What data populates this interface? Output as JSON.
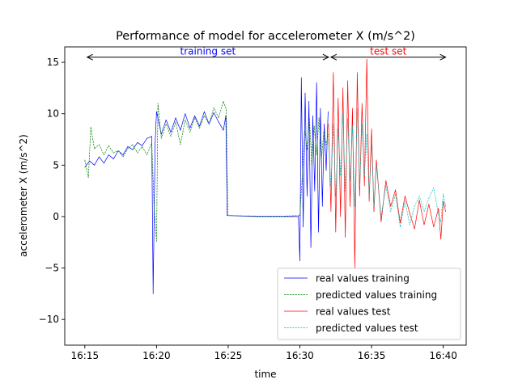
{
  "chart_data": {
    "type": "line",
    "title": "Performance of model for accelerometer X (m/s^2)",
    "xlabel": "time",
    "ylabel": "accelerometer X (m/s^2)",
    "xlim": [
      "16:13:36",
      "16:41:36"
    ],
    "ylim": [
      -12.5,
      16.5
    ],
    "xticks": [
      "16:15",
      "16:20",
      "16:25",
      "16:30",
      "16:35",
      "16:40"
    ],
    "yticks": [
      -10,
      -5,
      0,
      5,
      10,
      15
    ],
    "grid": false,
    "legend_position": "lower-right",
    "annotations": [
      {
        "text": "training set",
        "color": "#0000ff",
        "arrow_from": "16:15:10",
        "arrow_to": "16:32:00",
        "y": 15.5
      },
      {
        "text": "test set",
        "color": "#ff0000",
        "arrow_from": "16:32:10",
        "arrow_to": "16:40:10",
        "y": 15.5
      }
    ],
    "series": [
      {
        "name": "real values training",
        "color": "#0000ff",
        "style": "solid",
        "points": [
          [
            "16:15:00",
            4.8
          ],
          [
            "16:15:20",
            5.4
          ],
          [
            "16:15:40",
            5.0
          ],
          [
            "16:16:00",
            5.8
          ],
          [
            "16:16:20",
            5.2
          ],
          [
            "16:16:40",
            6.0
          ],
          [
            "16:17:00",
            5.6
          ],
          [
            "16:17:20",
            6.4
          ],
          [
            "16:17:40",
            6.0
          ],
          [
            "16:18:00",
            6.8
          ],
          [
            "16:18:20",
            6.5
          ],
          [
            "16:18:40",
            7.2
          ],
          [
            "16:19:00",
            6.9
          ],
          [
            "16:19:20",
            7.6
          ],
          [
            "16:19:40",
            7.8
          ],
          [
            "16:19:46",
            -7.5
          ],
          [
            "16:19:54",
            7.0
          ],
          [
            "16:20:00",
            10.2
          ],
          [
            "16:20:20",
            8.0
          ],
          [
            "16:20:40",
            9.4
          ],
          [
            "16:21:00",
            8.2
          ],
          [
            "16:21:20",
            9.6
          ],
          [
            "16:21:40",
            8.4
          ],
          [
            "16:22:00",
            10.0
          ],
          [
            "16:22:20",
            8.6
          ],
          [
            "16:22:40",
            9.8
          ],
          [
            "16:23:00",
            8.8
          ],
          [
            "16:23:20",
            10.2
          ],
          [
            "16:23:40",
            9.0
          ],
          [
            "16:24:00",
            10.1
          ],
          [
            "16:24:20",
            9.2
          ],
          [
            "16:24:40",
            8.4
          ],
          [
            "16:24:50",
            9.8
          ],
          [
            "16:24:56",
            0.1
          ],
          [
            "16:27:00",
            0.0
          ],
          [
            "16:29:00",
            0.0
          ],
          [
            "16:29:54",
            0.0
          ],
          [
            "16:30:00",
            -4.3
          ],
          [
            "16:30:06",
            13.5
          ],
          [
            "16:30:14",
            -1.0
          ],
          [
            "16:30:22",
            12.0
          ],
          [
            "16:30:30",
            2.0
          ],
          [
            "16:30:38",
            11.2
          ],
          [
            "16:30:46",
            -3.0
          ],
          [
            "16:30:54",
            9.8
          ],
          [
            "16:31:02",
            2.5
          ],
          [
            "16:31:10",
            13.0
          ],
          [
            "16:31:18",
            -1.5
          ],
          [
            "16:31:26",
            10.5
          ],
          [
            "16:31:34",
            1.0
          ],
          [
            "16:31:42",
            9.0
          ],
          [
            "16:31:50",
            4.5
          ],
          [
            "16:31:58",
            10.2
          ]
        ]
      },
      {
        "name": "predicted values training",
        "color": "#008000",
        "style": "dashed",
        "points": [
          [
            "16:15:00",
            5.5
          ],
          [
            "16:15:15",
            3.8
          ],
          [
            "16:15:25",
            8.7
          ],
          [
            "16:15:40",
            6.6
          ],
          [
            "16:16:00",
            7.0
          ],
          [
            "16:16:20",
            6.0
          ],
          [
            "16:16:40",
            6.9
          ],
          [
            "16:17:00",
            6.2
          ],
          [
            "16:17:20",
            6.4
          ],
          [
            "16:17:40",
            5.8
          ],
          [
            "16:18:00",
            6.6
          ],
          [
            "16:18:20",
            7.0
          ],
          [
            "16:18:40",
            6.2
          ],
          [
            "16:19:00",
            6.8
          ],
          [
            "16:19:20",
            6.0
          ],
          [
            "16:19:40",
            7.2
          ],
          [
            "16:19:50",
            1.0
          ],
          [
            "16:20:00",
            -2.4
          ],
          [
            "16:20:06",
            11.0
          ],
          [
            "16:20:20",
            7.6
          ],
          [
            "16:20:40",
            9.0
          ],
          [
            "16:21:00",
            7.8
          ],
          [
            "16:21:20",
            9.2
          ],
          [
            "16:21:40",
            7.0
          ],
          [
            "16:22:00",
            9.4
          ],
          [
            "16:22:20",
            8.2
          ],
          [
            "16:22:40",
            9.6
          ],
          [
            "16:23:00",
            8.6
          ],
          [
            "16:23:20",
            9.8
          ],
          [
            "16:23:40",
            9.0
          ],
          [
            "16:24:00",
            10.6
          ],
          [
            "16:24:20",
            9.6
          ],
          [
            "16:24:40",
            11.2
          ],
          [
            "16:24:52",
            10.4
          ],
          [
            "16:24:58",
            0.1
          ],
          [
            "16:27:00",
            0.05
          ],
          [
            "16:29:00",
            0.05
          ],
          [
            "16:30:00",
            0.1
          ],
          [
            "16:30:10",
            4.0
          ],
          [
            "16:30:20",
            8.5
          ],
          [
            "16:30:30",
            6.5
          ],
          [
            "16:30:40",
            9.5
          ],
          [
            "16:30:50",
            5.0
          ],
          [
            "16:31:00",
            8.8
          ],
          [
            "16:31:10",
            6.0
          ],
          [
            "16:31:20",
            9.6
          ],
          [
            "16:31:30",
            5.5
          ],
          [
            "16:31:40",
            8.2
          ],
          [
            "16:31:50",
            7.0
          ],
          [
            "16:31:58",
            8.0
          ]
        ]
      },
      {
        "name": "real values test",
        "color": "#ff0000",
        "style": "solid",
        "points": [
          [
            "16:32:00",
            9.0
          ],
          [
            "16:32:10",
            0.5
          ],
          [
            "16:32:20",
            14.0
          ],
          [
            "16:32:30",
            -1.5
          ],
          [
            "16:32:40",
            11.5
          ],
          [
            "16:32:50",
            0.0
          ],
          [
            "16:33:00",
            12.5
          ],
          [
            "16:33:10",
            -2.0
          ],
          [
            "16:33:20",
            13.2
          ],
          [
            "16:33:30",
            1.0
          ],
          [
            "16:33:40",
            10.5
          ],
          [
            "16:33:50",
            -5.0
          ],
          [
            "16:34:00",
            14.0
          ],
          [
            "16:34:10",
            2.0
          ],
          [
            "16:34:20",
            11.0
          ],
          [
            "16:34:30",
            3.0
          ],
          [
            "16:34:40",
            15.3
          ],
          [
            "16:34:50",
            1.5
          ],
          [
            "16:35:00",
            8.5
          ],
          [
            "16:35:10",
            0.5
          ],
          [
            "16:35:20",
            5.5
          ],
          [
            "16:35:40",
            -0.5
          ],
          [
            "16:36:00",
            3.5
          ],
          [
            "16:36:20",
            1.0
          ],
          [
            "16:36:40",
            2.6
          ],
          [
            "16:37:00",
            -0.6
          ],
          [
            "16:37:20",
            2.0
          ],
          [
            "16:37:40",
            0.3
          ],
          [
            "16:38:00",
            -1.2
          ],
          [
            "16:38:20",
            1.6
          ],
          [
            "16:38:40",
            -0.8
          ],
          [
            "16:39:00",
            1.2
          ],
          [
            "16:39:20",
            -1.0
          ],
          [
            "16:39:40",
            0.8
          ],
          [
            "16:39:50",
            -2.2
          ],
          [
            "16:40:00",
            1.5
          ],
          [
            "16:40:10",
            0.5
          ]
        ]
      },
      {
        "name": "predicted values test",
        "color": "#00bfbf",
        "style": "dashed",
        "points": [
          [
            "16:32:00",
            7.5
          ],
          [
            "16:32:10",
            3.0
          ],
          [
            "16:32:20",
            9.0
          ],
          [
            "16:32:30",
            2.0
          ],
          [
            "16:32:40",
            8.5
          ],
          [
            "16:32:50",
            4.0
          ],
          [
            "16:33:00",
            10.0
          ],
          [
            "16:33:10",
            2.5
          ],
          [
            "16:33:20",
            9.5
          ],
          [
            "16:33:30",
            3.5
          ],
          [
            "16:33:40",
            8.8
          ],
          [
            "16:33:50",
            1.0
          ],
          [
            "16:34:00",
            10.5
          ],
          [
            "16:34:10",
            3.0
          ],
          [
            "16:34:20",
            9.0
          ],
          [
            "16:34:30",
            4.0
          ],
          [
            "16:34:40",
            8.0
          ],
          [
            "16:34:50",
            2.0
          ],
          [
            "16:35:00",
            7.0
          ],
          [
            "16:35:10",
            1.0
          ],
          [
            "16:35:20",
            5.0
          ],
          [
            "16:35:40",
            0.0
          ],
          [
            "16:36:00",
            3.0
          ],
          [
            "16:36:20",
            0.5
          ],
          [
            "16:36:40",
            2.2
          ],
          [
            "16:37:00",
            -1.0
          ],
          [
            "16:37:20",
            1.5
          ],
          [
            "16:37:40",
            -0.8
          ],
          [
            "16:38:00",
            1.0
          ],
          [
            "16:38:20",
            2.0
          ],
          [
            "16:38:40",
            0.5
          ],
          [
            "16:39:00",
            1.8
          ],
          [
            "16:39:20",
            2.8
          ],
          [
            "16:39:40",
            0.2
          ],
          [
            "16:39:50",
            -0.5
          ],
          [
            "16:40:00",
            2.2
          ],
          [
            "16:40:10",
            1.0
          ]
        ]
      }
    ]
  }
}
